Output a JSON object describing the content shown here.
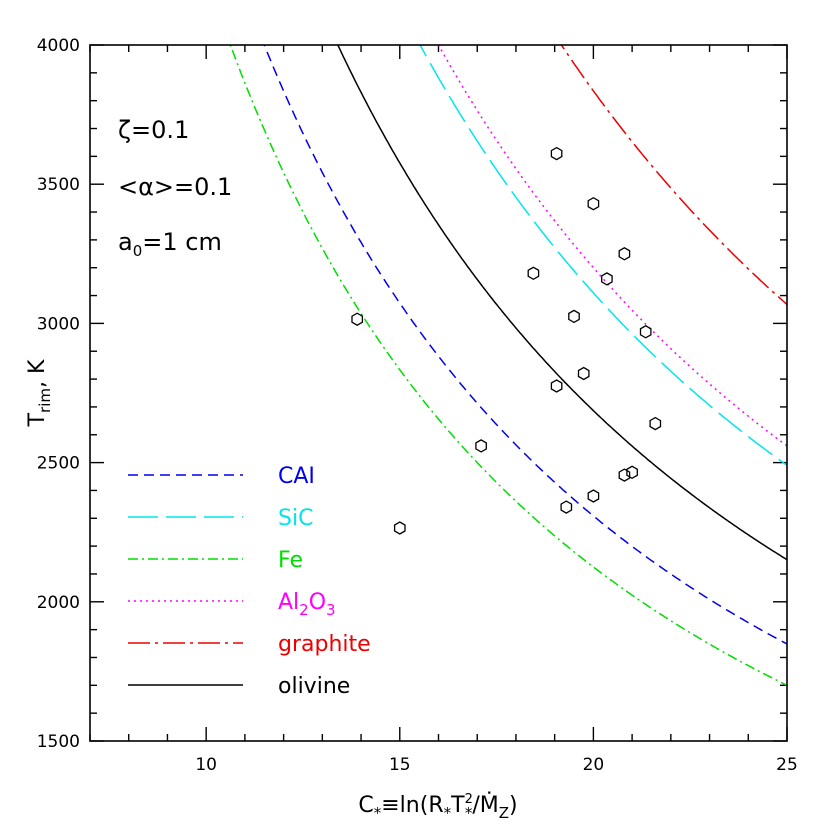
{
  "chart_data": {
    "type": "line",
    "xlabel": {
      "main": "C",
      "sub1": "*",
      "mid1": "≡ln(R",
      "sub2": "*",
      "mid2": "T",
      "sup3": "2",
      "sub3": "*",
      "mid3": "/",
      "mdot": "Ṁ",
      "sub4": "Z",
      "end": ")"
    },
    "ylabel": {
      "main": "T",
      "sub": "rim",
      "end": ",  K"
    },
    "xlim": [
      7,
      25
    ],
    "ylim": [
      1500,
      4000
    ],
    "xticks": [
      10,
      15,
      20,
      25
    ],
    "yticks": [
      1500,
      2000,
      2500,
      3000,
      3500,
      4000
    ],
    "annotations": [
      {
        "id": "zeta",
        "text": "ζ=0.1"
      },
      {
        "id": "alpha",
        "text": "<α>=0.1"
      },
      {
        "id": "a0",
        "pre": "a",
        "sub": "0",
        "post": "=1  cm"
      }
    ],
    "series": [
      {
        "name": "CAI",
        "color": "#0000ee",
        "dash": "10,6",
        "curve": {
          "A": 46400,
          "B": 0.1
        }
      },
      {
        "name": "SiC",
        "color": "#00e5ee",
        "dash": "30,8",
        "curve": {
          "A": 62500,
          "B": 0.1
        }
      },
      {
        "name": "Fe",
        "color": "#00dd00",
        "dash": "10,4,2,4",
        "curve": {
          "A": 42500,
          "B": 0.0
        }
      },
      {
        "name": "Al2O3",
        "label_parts": [
          "Al",
          "2",
          "O",
          "3"
        ],
        "color": "#ff00ff",
        "dash": "2,4",
        "curve": {
          "A": 64000,
          "B": 0.0
        }
      },
      {
        "name": "graphite",
        "color": "#ee0000",
        "dash": "22,5,3,5",
        "curve": {
          "A": 76700,
          "B": 0.0
        }
      },
      {
        "name": "olivine",
        "color": "#000000",
        "dash": "",
        "curve": {
          "A": 54000,
          "B": 0.1
        }
      }
    ],
    "points": [
      [
        13.9,
        3015
      ],
      [
        15.0,
        2265
      ],
      [
        17.1,
        2560
      ],
      [
        18.45,
        3180
      ],
      [
        19.05,
        3610
      ],
      [
        19.05,
        2775
      ],
      [
        19.3,
        2340
      ],
      [
        19.5,
        3025
      ],
      [
        19.75,
        2820
      ],
      [
        20.0,
        3430
      ],
      [
        20.0,
        2380
      ],
      [
        20.35,
        3160
      ],
      [
        20.8,
        3250
      ],
      [
        20.8,
        2455
      ],
      [
        21.0,
        2465
      ],
      [
        21.35,
        2970
      ],
      [
        21.6,
        2640
      ]
    ]
  }
}
